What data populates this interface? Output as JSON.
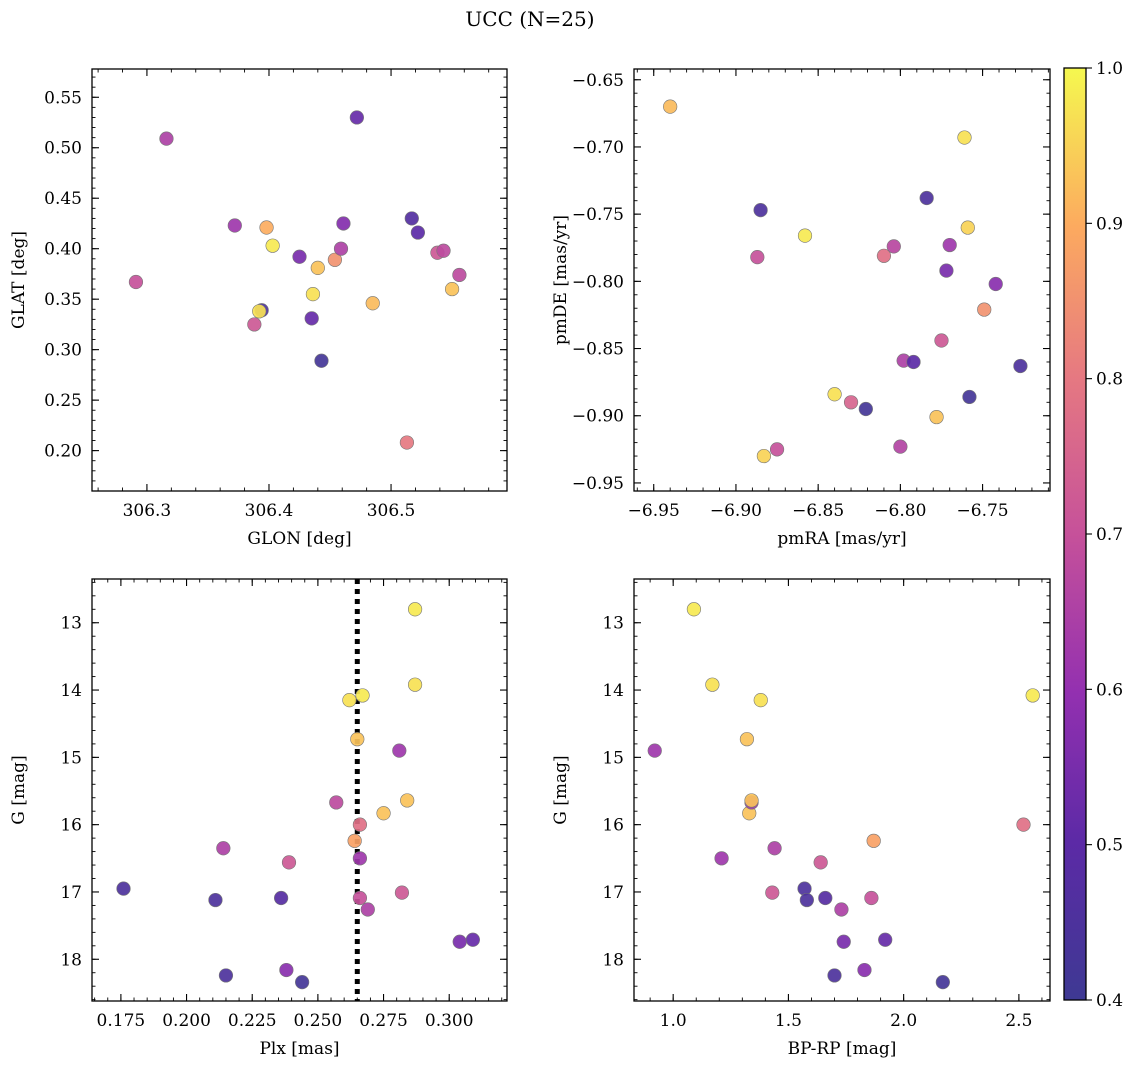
{
  "figure": {
    "title": "UCC (N=25)",
    "colorbar": {
      "min": 0.4,
      "max": 1.0,
      "ticks": [
        0.4,
        0.5,
        0.6,
        0.7,
        0.8,
        0.9,
        1.0
      ],
      "tick_labels": [
        "0.4",
        "0.5",
        "0.6",
        "0.7",
        "0.8",
        "0.9",
        "1.0"
      ],
      "colormap": "plasma"
    }
  },
  "chart_data": [
    {
      "type": "scatter",
      "xlabel": "GLON [deg]",
      "ylabel": "GLAT [deg]",
      "xlim": [
        306.255,
        306.595
      ],
      "ylim": [
        0.16,
        0.578
      ],
      "xticks": [
        306.3,
        306.4,
        306.5
      ],
      "xtick_labels": [
        "306.3",
        "306.4",
        "306.5"
      ],
      "yticks": [
        0.2,
        0.25,
        0.3,
        0.35,
        0.4,
        0.45,
        0.5,
        0.55
      ],
      "ytick_labels": [
        "0.20",
        "0.25",
        "0.30",
        "0.35",
        "0.40",
        "0.45",
        "0.50",
        "0.55"
      ],
      "points": [
        {
          "x": 306.291,
          "y": 0.367,
          "c": 0.7
        },
        {
          "x": 306.316,
          "y": 0.509,
          "c": 0.65
        },
        {
          "x": 306.372,
          "y": 0.423,
          "c": 0.62
        },
        {
          "x": 306.388,
          "y": 0.325,
          "c": 0.72
        },
        {
          "x": 306.394,
          "y": 0.339,
          "c": 0.45
        },
        {
          "x": 306.392,
          "y": 0.338,
          "c": 0.97
        },
        {
          "x": 306.398,
          "y": 0.421,
          "c": 0.9
        },
        {
          "x": 306.403,
          "y": 0.403,
          "c": 0.98
        },
        {
          "x": 306.425,
          "y": 0.392,
          "c": 0.55
        },
        {
          "x": 306.435,
          "y": 0.331,
          "c": 0.52
        },
        {
          "x": 306.436,
          "y": 0.355,
          "c": 0.97
        },
        {
          "x": 306.44,
          "y": 0.381,
          "c": 0.93
        },
        {
          "x": 306.443,
          "y": 0.289,
          "c": 0.42
        },
        {
          "x": 306.454,
          "y": 0.389,
          "c": 0.85
        },
        {
          "x": 306.459,
          "y": 0.4,
          "c": 0.65
        },
        {
          "x": 306.461,
          "y": 0.425,
          "c": 0.57
        },
        {
          "x": 306.472,
          "y": 0.53,
          "c": 0.52
        },
        {
          "x": 306.485,
          "y": 0.346,
          "c": 0.92
        },
        {
          "x": 306.513,
          "y": 0.208,
          "c": 0.8
        },
        {
          "x": 306.517,
          "y": 0.43,
          "c": 0.47
        },
        {
          "x": 306.522,
          "y": 0.416,
          "c": 0.5
        },
        {
          "x": 306.538,
          "y": 0.396,
          "c": 0.72
        },
        {
          "x": 306.543,
          "y": 0.398,
          "c": 0.68
        },
        {
          "x": 306.55,
          "y": 0.36,
          "c": 0.93
        },
        {
          "x": 306.556,
          "y": 0.374,
          "c": 0.68
        }
      ]
    },
    {
      "type": "scatter",
      "xlabel": "pmRA [mas/yr]",
      "ylabel": "pmDE [mas/yr]",
      "xlim": [
        -6.962,
        -6.709
      ],
      "ylim": [
        -0.956,
        -0.642
      ],
      "xticks": [
        -6.95,
        -6.9,
        -6.85,
        -6.8,
        -6.75
      ],
      "xtick_labels": [
        "−6.95",
        "−6.90",
        "−6.85",
        "−6.80",
        "−6.75"
      ],
      "yticks": [
        -0.95,
        -0.9,
        -0.85,
        -0.8,
        -0.75,
        -0.7,
        -0.65
      ],
      "ytick_labels": [
        "−0.95",
        "−0.90",
        "−0.85",
        "−0.80",
        "−0.75",
        "−0.70",
        "−0.65"
      ],
      "points": [
        {
          "x": -6.94,
          "y": -0.67,
          "c": 0.92
        },
        {
          "x": -6.885,
          "y": -0.747,
          "c": 0.45
        },
        {
          "x": -6.887,
          "y": -0.782,
          "c": 0.7
        },
        {
          "x": -6.883,
          "y": -0.93,
          "c": 0.95
        },
        {
          "x": -6.875,
          "y": -0.925,
          "c": 0.7
        },
        {
          "x": -6.858,
          "y": -0.766,
          "c": 0.98
        },
        {
          "x": -6.84,
          "y": -0.884,
          "c": 0.97
        },
        {
          "x": -6.83,
          "y": -0.89,
          "c": 0.75
        },
        {
          "x": -6.821,
          "y": -0.895,
          "c": 0.42
        },
        {
          "x": -6.81,
          "y": -0.781,
          "c": 0.78
        },
        {
          "x": -6.804,
          "y": -0.774,
          "c": 0.67
        },
        {
          "x": -6.8,
          "y": -0.923,
          "c": 0.66
        },
        {
          "x": -6.798,
          "y": -0.859,
          "c": 0.65
        },
        {
          "x": -6.792,
          "y": -0.86,
          "c": 0.5
        },
        {
          "x": -6.784,
          "y": -0.738,
          "c": 0.45
        },
        {
          "x": -6.778,
          "y": -0.901,
          "c": 0.93
        },
        {
          "x": -6.775,
          "y": -0.844,
          "c": 0.72
        },
        {
          "x": -6.772,
          "y": -0.792,
          "c": 0.55
        },
        {
          "x": -6.77,
          "y": -0.773,
          "c": 0.62
        },
        {
          "x": -6.761,
          "y": -0.693,
          "c": 0.97
        },
        {
          "x": -6.759,
          "y": -0.76,
          "c": 0.95
        },
        {
          "x": -6.758,
          "y": -0.886,
          "c": 0.42
        },
        {
          "x": -6.749,
          "y": -0.821,
          "c": 0.85
        },
        {
          "x": -6.742,
          "y": -0.802,
          "c": 0.58
        },
        {
          "x": -6.727,
          "y": -0.863,
          "c": 0.45
        }
      ]
    },
    {
      "type": "scatter",
      "xlabel": "Plx [mas]",
      "ylabel": "G [mag]",
      "xlim": [
        0.164,
        0.322
      ],
      "ylim": [
        18.62,
        12.35
      ],
      "y_inverted": true,
      "xticks": [
        0.175,
        0.2,
        0.225,
        0.25,
        0.275,
        0.3
      ],
      "xtick_labels": [
        "0.175",
        "0.200",
        "0.225",
        "0.250",
        "0.275",
        "0.300"
      ],
      "yticks": [
        13,
        14,
        15,
        16,
        17,
        18
      ],
      "ytick_labels": [
        "13",
        "14",
        "15",
        "16",
        "17",
        "18"
      ],
      "vline": 0.265,
      "points": [
        {
          "x": 0.176,
          "y": 16.95,
          "c": 0.45
        },
        {
          "x": 0.211,
          "y": 17.12,
          "c": 0.45
        },
        {
          "x": 0.214,
          "y": 16.35,
          "c": 0.65
        },
        {
          "x": 0.215,
          "y": 18.24,
          "c": 0.45
        },
        {
          "x": 0.236,
          "y": 17.09,
          "c": 0.48
        },
        {
          "x": 0.238,
          "y": 18.16,
          "c": 0.58
        },
        {
          "x": 0.239,
          "y": 16.56,
          "c": 0.72
        },
        {
          "x": 0.244,
          "y": 18.34,
          "c": 0.42
        },
        {
          "x": 0.257,
          "y": 15.67,
          "c": 0.68
        },
        {
          "x": 0.262,
          "y": 14.15,
          "c": 0.97
        },
        {
          "x": 0.264,
          "y": 16.24,
          "c": 0.88
        },
        {
          "x": 0.265,
          "y": 14.73,
          "c": 0.93
        },
        {
          "x": 0.266,
          "y": 17.09,
          "c": 0.7
        },
        {
          "x": 0.266,
          "y": 16.0,
          "c": 0.78
        },
        {
          "x": 0.266,
          "y": 16.5,
          "c": 0.62
        },
        {
          "x": 0.267,
          "y": 14.08,
          "c": 0.98
        },
        {
          "x": 0.269,
          "y": 17.26,
          "c": 0.65
        },
        {
          "x": 0.275,
          "y": 15.83,
          "c": 0.93
        },
        {
          "x": 0.281,
          "y": 14.9,
          "c": 0.62
        },
        {
          "x": 0.282,
          "y": 17.01,
          "c": 0.72
        },
        {
          "x": 0.284,
          "y": 15.64,
          "c": 0.93
        },
        {
          "x": 0.287,
          "y": 13.92,
          "c": 0.97
        },
        {
          "x": 0.287,
          "y": 12.8,
          "c": 0.98
        },
        {
          "x": 0.304,
          "y": 17.74,
          "c": 0.55
        },
        {
          "x": 0.309,
          "y": 17.71,
          "c": 0.52
        }
      ]
    },
    {
      "type": "scatter",
      "xlabel": "BP-RP [mag]",
      "ylabel": "G [mag]",
      "xlim": [
        0.83,
        2.635
      ],
      "ylim": [
        18.62,
        12.35
      ],
      "y_inverted": true,
      "xticks": [
        1.0,
        1.5,
        2.0,
        2.5
      ],
      "xtick_labels": [
        "1.0",
        "1.5",
        "2.0",
        "2.5"
      ],
      "yticks": [
        13,
        14,
        15,
        16,
        17,
        18
      ],
      "ytick_labels": [
        "13",
        "14",
        "15",
        "16",
        "17",
        "18"
      ],
      "points": [
        {
          "x": 0.92,
          "y": 14.9,
          "c": 0.62
        },
        {
          "x": 1.09,
          "y": 12.8,
          "c": 0.98
        },
        {
          "x": 1.17,
          "y": 13.92,
          "c": 0.97
        },
        {
          "x": 1.21,
          "y": 16.5,
          "c": 0.62
        },
        {
          "x": 1.32,
          "y": 14.73,
          "c": 0.93
        },
        {
          "x": 1.33,
          "y": 15.83,
          "c": 0.93
        },
        {
          "x": 1.34,
          "y": 15.67,
          "c": 0.62
        },
        {
          "x": 1.34,
          "y": 15.64,
          "c": 0.93
        },
        {
          "x": 1.38,
          "y": 14.15,
          "c": 0.97
        },
        {
          "x": 1.43,
          "y": 17.01,
          "c": 0.72
        },
        {
          "x": 1.44,
          "y": 16.35,
          "c": 0.65
        },
        {
          "x": 1.57,
          "y": 16.95,
          "c": 0.45
        },
        {
          "x": 1.58,
          "y": 17.12,
          "c": 0.45
        },
        {
          "x": 1.64,
          "y": 16.56,
          "c": 0.72
        },
        {
          "x": 1.66,
          "y": 17.09,
          "c": 0.48
        },
        {
          "x": 1.7,
          "y": 18.24,
          "c": 0.45
        },
        {
          "x": 1.73,
          "y": 17.26,
          "c": 0.65
        },
        {
          "x": 1.74,
          "y": 17.74,
          "c": 0.55
        },
        {
          "x": 1.83,
          "y": 18.16,
          "c": 0.58
        },
        {
          "x": 1.86,
          "y": 17.09,
          "c": 0.7
        },
        {
          "x": 1.87,
          "y": 16.24,
          "c": 0.88
        },
        {
          "x": 1.92,
          "y": 17.71,
          "c": 0.52
        },
        {
          "x": 2.17,
          "y": 18.34,
          "c": 0.42
        },
        {
          "x": 2.52,
          "y": 16.0,
          "c": 0.78
        },
        {
          "x": 2.56,
          "y": 14.08,
          "c": 0.98
        }
      ]
    }
  ]
}
